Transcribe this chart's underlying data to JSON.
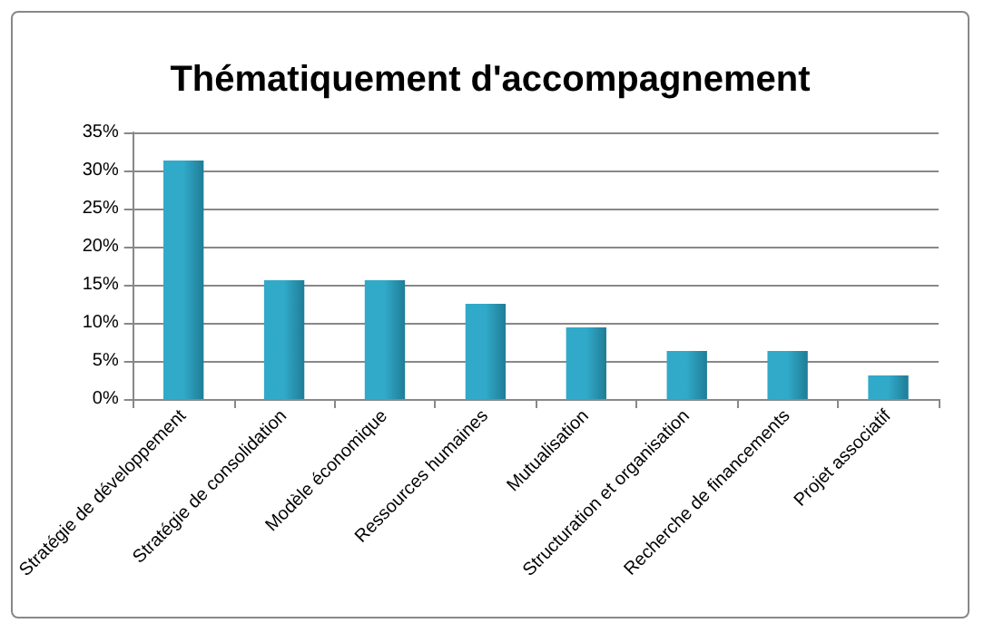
{
  "chart_data": {
    "type": "bar",
    "title": "Thématiquement d'accompagnement",
    "categories": [
      "Stratégie de développement",
      "Stratégie de consolidation",
      "Modèle économique",
      "Ressources humaines",
      "Mutualisation",
      "Structuration et organisation",
      "Recherche de financements",
      "Projet associatif"
    ],
    "values": [
      31.3,
      15.6,
      15.6,
      12.5,
      9.4,
      6.3,
      6.3,
      3.1
    ],
    "color": "#31a9c9",
    "ylim": [
      0,
      35
    ],
    "yticks": [
      {
        "value": 0,
        "label": "0%"
      },
      {
        "value": 5,
        "label": "5%"
      },
      {
        "value": 10,
        "label": "10%"
      },
      {
        "value": 15,
        "label": "15%"
      },
      {
        "value": 20,
        "label": "20%"
      },
      {
        "value": 25,
        "label": "25%"
      },
      {
        "value": 30,
        "label": "30%"
      },
      {
        "value": 35,
        "label": "35%"
      }
    ],
    "grid": "y"
  }
}
